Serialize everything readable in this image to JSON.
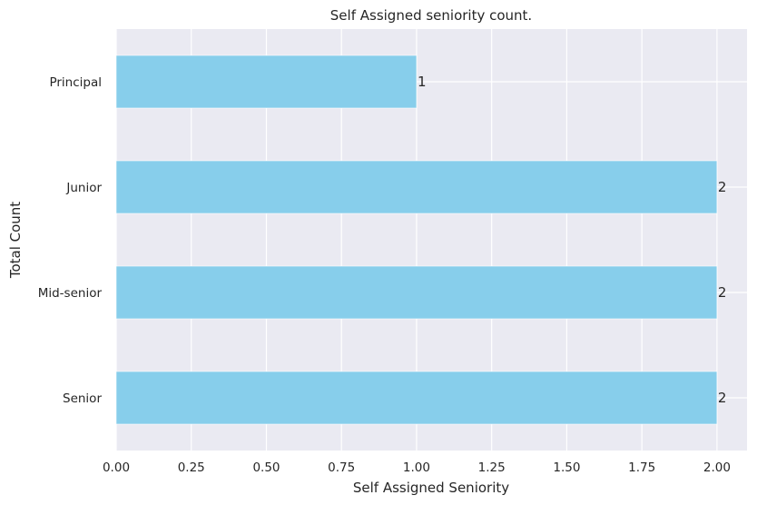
{
  "chart_data": {
    "type": "bar",
    "orientation": "horizontal",
    "title": "Self Assigned seniority count.",
    "xlabel": "Self Assigned Seniority",
    "ylabel": "Total Count",
    "categories": [
      "Principal",
      "Junior",
      "Mid-senior",
      "Senior"
    ],
    "values": [
      1,
      2,
      2,
      2
    ],
    "data_labels": [
      "1",
      "2",
      "2",
      "2"
    ],
    "xlim": [
      0,
      2.1
    ],
    "xticks": [
      0,
      0.25,
      0.5,
      0.75,
      1.0,
      1.25,
      1.5,
      1.75,
      2.0
    ],
    "xtick_labels": [
      "0.00",
      "0.25",
      "0.50",
      "0.75",
      "1.00",
      "1.25",
      "1.50",
      "1.75",
      "2.00"
    ],
    "grid": true,
    "colors": {
      "bar": "#87ceeb",
      "background": "#eaeaf2",
      "grid": "#ffffff",
      "text": "#262626"
    }
  }
}
